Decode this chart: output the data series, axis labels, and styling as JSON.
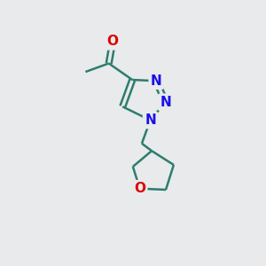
{
  "background_color": "#e8eaeb",
  "bond_color": "#2d7d6e",
  "nitrogen_color": "#1a0fe8",
  "oxygen_color": "#dd0000",
  "bond_width": 1.8,
  "font_size_atom": 11,
  "fig_width": 3.0,
  "fig_height": 3.0,
  "dpi": 100,
  "xlim": [
    0,
    10
  ],
  "ylim": [
    0,
    10
  ]
}
